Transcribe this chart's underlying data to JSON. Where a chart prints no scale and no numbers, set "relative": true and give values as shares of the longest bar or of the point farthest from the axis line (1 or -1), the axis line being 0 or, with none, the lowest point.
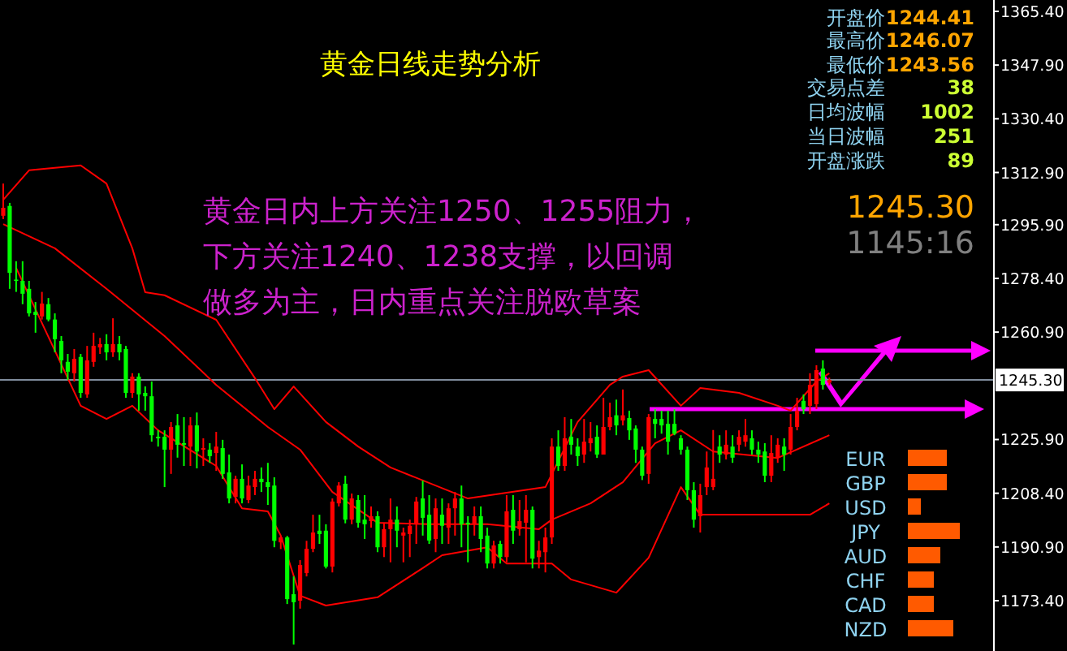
{
  "chart_data": [
    {
      "type": "candlestick",
      "title": "黄金日线走势分析",
      "categories": [
        null,
        null,
        null,
        null,
        null,
        null,
        null,
        null,
        null,
        null,
        null,
        null,
        null,
        null,
        null,
        null,
        null,
        null,
        null,
        null,
        null,
        null,
        null,
        null,
        null,
        null,
        null,
        null,
        null,
        null,
        null,
        null,
        null,
        null,
        null,
        null,
        null,
        null,
        null,
        null,
        null,
        null,
        null,
        null,
        null,
        null,
        null,
        null,
        null,
        null,
        null,
        null,
        null,
        null,
        null,
        null,
        null,
        null,
        null,
        null,
        null,
        null,
        null,
        null,
        null,
        null,
        null,
        null,
        null,
        null,
        null,
        null,
        null,
        null,
        null,
        null,
        null,
        null,
        null,
        null,
        null,
        null,
        null,
        null,
        null,
        null,
        null,
        null,
        null,
        null,
        null,
        null,
        null,
        null,
        null,
        null,
        null,
        null,
        null,
        null,
        null,
        null,
        null,
        null,
        null,
        null,
        null,
        null,
        null,
        null,
        null,
        null,
        null,
        null,
        null,
        null,
        null,
        null,
        null,
        null,
        null,
        null,
        null,
        null,
        null,
        null,
        null,
        null,
        null,
        null,
        null,
        null,
        null,
        null,
        null,
        null,
        null,
        null,
        null,
        null,
        null,
        null,
        null,
        null,
        null,
        null,
        null,
        null,
        null,
        null,
        null,
        null,
        null,
        null
      ],
      "ohlc": [
        [
          1298.8,
          1309.3,
          1297.7,
          1301.4
        ],
        [
          1302.0,
          1303.0,
          1275.0,
          1280.2
        ],
        [
          1278.0,
          1284.0,
          1274.0,
          1277.6
        ],
        [
          1277.6,
          1284.0,
          1270.0,
          1273.4
        ],
        [
          1275.0,
          1277.6,
          1266.0,
          1267.0
        ],
        [
          1267.5,
          1270.7,
          1260.7,
          1266.5
        ],
        [
          1266.0,
          1274.0,
          1265.0,
          1270.2
        ],
        [
          1270.0,
          1272.0,
          1264.4,
          1265.0
        ],
        [
          1265.0,
          1267.0,
          1254.3,
          1258.6
        ],
        [
          1258.0,
          1259.6,
          1247.5,
          1251.7
        ],
        [
          1251.2,
          1253.8,
          1245.3,
          1248.0
        ],
        [
          1247.5,
          1255.4,
          1244.8,
          1252.2
        ],
        [
          1252.8,
          1253.8,
          1239.5,
          1241.1
        ],
        [
          1240.6,
          1256.4,
          1239.5,
          1251.7
        ],
        [
          1251.2,
          1260.7,
          1249.6,
          1256.4
        ],
        [
          1255.9,
          1259.0,
          1253.8,
          1257.0
        ],
        [
          1257.0,
          1260.2,
          1251.7,
          1254.3
        ],
        [
          1254.3,
          1265.4,
          1252.8,
          1257.0
        ],
        [
          1257.0,
          1259.6,
          1251.7,
          1254.3
        ],
        [
          1255.4,
          1256.4,
          1239.5,
          1241.1
        ],
        [
          1241.1,
          1247.5,
          1239.5,
          1246.4
        ],
        [
          1246.4,
          1247.5,
          1235.3,
          1240.6
        ],
        [
          1241.1,
          1243.2,
          1235.3,
          1240.0
        ],
        [
          1240.0,
          1244.8,
          1225.2,
          1227.3
        ],
        [
          1226.8,
          1228.9,
          1223.6,
          1226.3
        ],
        [
          1226.8,
          1228.9,
          1210.4,
          1222.6
        ],
        [
          1222.6,
          1231.6,
          1214.7,
          1230.0
        ],
        [
          1230.5,
          1234.2,
          1220.0,
          1224.2
        ],
        [
          1224.7,
          1233.2,
          1217.3,
          1224.2
        ],
        [
          1223.6,
          1233.2,
          1217.3,
          1230.5
        ],
        [
          1230.5,
          1234.7,
          1216.5,
          1222.0
        ],
        [
          1222.6,
          1226.3,
          1217.3,
          1223.1
        ],
        [
          1222.6,
          1224.7,
          1218.3,
          1220.5
        ],
        [
          1221.5,
          1228.4,
          1215.7,
          1223.6
        ],
        [
          1223.1,
          1225.8,
          1213.1,
          1214.7
        ],
        [
          1215.2,
          1221.0,
          1205.1,
          1206.7
        ],
        [
          1207.2,
          1214.1,
          1205.1,
          1213.1
        ],
        [
          1213.1,
          1217.8,
          1205.1,
          1206.7
        ],
        [
          1206.2,
          1214.1,
          1205.1,
          1210.9
        ],
        [
          1210.4,
          1215.7,
          1207.8,
          1213.1
        ],
        [
          1213.1,
          1216.8,
          1208.8,
          1212.0
        ],
        [
          1212.0,
          1218.3,
          1204.6,
          1210.4
        ],
        [
          1210.9,
          1213.6,
          1190.8,
          1192.9
        ],
        [
          1192.4,
          1194.5,
          1190.2,
          1194.0
        ],
        [
          1194.0,
          1194.5,
          1172.3,
          1173.9
        ],
        [
          1175.5,
          1181.3,
          1159.1,
          1172.9
        ],
        [
          1173.4,
          1186.6,
          1170.8,
          1185.0
        ],
        [
          1182.4,
          1192.9,
          1181.3,
          1190.3
        ],
        [
          1190.3,
          1201.4,
          1189.2,
          1195.6
        ],
        [
          1196.2,
          1201.4,
          1191.9,
          1195.1
        ],
        [
          1196.2,
          1198.3,
          1183.9,
          1184.5
        ],
        [
          1184.5,
          1206.7,
          1182.6,
          1205.7
        ],
        [
          1205.1,
          1212.0,
          1204.1,
          1210.9
        ],
        [
          1211.5,
          1214.1,
          1198.6,
          1199.8
        ],
        [
          1199.8,
          1208.3,
          1198.3,
          1206.7
        ],
        [
          1206.2,
          1207.8,
          1197.2,
          1198.8
        ],
        [
          1199.8,
          1207.8,
          1193.5,
          1198.3
        ],
        [
          1199.3,
          1204.1,
          1197.2,
          1200.9
        ],
        [
          1200.9,
          1202.5,
          1189.2,
          1190.8
        ],
        [
          1190.8,
          1198.8,
          1187.6,
          1196.7
        ],
        [
          1196.7,
          1206.7,
          1185.9,
          1199.8
        ],
        [
          1199.8,
          1204.1,
          1190.8,
          1196.2
        ],
        [
          1194.6,
          1197.2,
          1185.9,
          1195.6
        ],
        [
          1195.1,
          1199.8,
          1187.6,
          1197.8
        ],
        [
          1198.3,
          1207.2,
          1191.9,
          1205.7
        ],
        [
          1206.7,
          1212.5,
          1194.6,
          1200.4
        ],
        [
          1201.4,
          1207.8,
          1191.9,
          1193.0
        ],
        [
          1193.5,
          1206.7,
          1189.2,
          1203.5
        ],
        [
          1201.4,
          1206.7,
          1191.9,
          1197.8
        ],
        [
          1197.2,
          1205.1,
          1191.9,
          1203.5
        ],
        [
          1203.5,
          1208.8,
          1194.6,
          1206.7
        ],
        [
          1206.7,
          1210.9,
          1190.8,
          1198.3
        ],
        [
          1198.8,
          1200.9,
          1185.9,
          1198.3
        ],
        [
          1198.3,
          1204.1,
          1194.6,
          1200.9
        ],
        [
          1200.9,
          1204.1,
          1189.2,
          1193.5
        ],
        [
          1194.6,
          1197.2,
          1183.9,
          1185.5
        ],
        [
          1185.5,
          1192.9,
          1183.9,
          1191.4
        ],
        [
          1191.9,
          1192.9,
          1185.5,
          1187.6
        ],
        [
          1187.6,
          1207.8,
          1185.9,
          1202.5
        ],
        [
          1203.0,
          1207.8,
          1191.9,
          1196.2
        ],
        [
          1196.7,
          1206.2,
          1194.6,
          1199.3
        ],
        [
          1198.8,
          1207.8,
          1185.9,
          1203.0
        ],
        [
          1203.0,
          1204.1,
          1183.9,
          1187.1
        ],
        [
          1187.6,
          1192.9,
          1183.9,
          1189.7
        ],
        [
          1189.2,
          1197.2,
          1182.6,
          1194.0
        ],
        [
          1194.0,
          1226.3,
          1191.9,
          1223.6
        ],
        [
          1223.6,
          1228.9,
          1215.7,
          1217.3
        ],
        [
          1217.3,
          1233.2,
          1215.7,
          1226.3
        ],
        [
          1226.8,
          1232.6,
          1221.0,
          1224.2
        ],
        [
          1223.6,
          1226.3,
          1217.3,
          1220.5
        ],
        [
          1221.0,
          1232.6,
          1218.3,
          1225.2
        ],
        [
          1224.7,
          1231.6,
          1222.0,
          1226.3
        ],
        [
          1226.8,
          1230.5,
          1219.9,
          1221.0
        ],
        [
          1221.0,
          1239.5,
          1221.0,
          1230.0
        ],
        [
          1230.0,
          1237.9,
          1228.9,
          1233.2
        ],
        [
          1233.8,
          1238.9,
          1227.3,
          1230.5
        ],
        [
          1232.1,
          1242.2,
          1230.5,
          1233.8
        ],
        [
          1232.9,
          1235.3,
          1225.8,
          1228.9
        ],
        [
          1229.5,
          1230.5,
          1218.3,
          1222.6
        ],
        [
          1222.6,
          1223.6,
          1212.7,
          1214.1
        ],
        [
          1214.7,
          1234.2,
          1211.5,
          1233.2
        ],
        [
          1232.6,
          1235.8,
          1226.3,
          1231.0
        ],
        [
          1232.6,
          1235.3,
          1227.8,
          1230.5
        ],
        [
          1231.0,
          1235.3,
          1221.0,
          1225.2
        ],
        [
          1231.0,
          1235.8,
          1227.3,
          1227.8
        ],
        [
          1226.3,
          1227.3,
          1221.0,
          1222.6
        ],
        [
          1222.6,
          1223.6,
          1206.2,
          1209.4
        ],
        [
          1209.4,
          1212.0,
          1197.2,
          1199.8
        ],
        [
          1200.9,
          1211.5,
          1195.6,
          1207.8
        ],
        [
          1210.4,
          1222.0,
          1207.8,
          1216.8
        ],
        [
          1210.4,
          1229.0,
          1209.4,
          1213.1
        ],
        [
          1223.6,
          1227.3,
          1218.3,
          1221.0
        ],
        [
          1221.0,
          1228.9,
          1219.4,
          1224.2
        ],
        [
          1223.6,
          1227.3,
          1218.3,
          1220.0
        ],
        [
          1224.2,
          1228.9,
          1222.0,
          1226.8
        ],
        [
          1225.2,
          1232.6,
          1223.6,
          1227.3
        ],
        [
          1226.3,
          1228.9,
          1221.0,
          1222.6
        ],
        [
          1222.6,
          1225.2,
          1218.3,
          1221.0
        ],
        [
          1222.0,
          1224.7,
          1212.0,
          1214.1
        ],
        [
          1214.1,
          1227.3,
          1212.0,
          1221.5
        ],
        [
          1220.0,
          1226.3,
          1218.3,
          1224.2
        ],
        [
          1223.6,
          1226.3,
          1215.7,
          1221.0
        ],
        [
          1222.6,
          1234.2,
          1221.0,
          1230.0
        ],
        [
          1230.0,
          1239.5,
          1228.9,
          1235.3
        ],
        [
          1238.5,
          1240.6,
          1234.2,
          1235.8
        ],
        [
          1236.9,
          1247.5,
          1234.2,
          1243.7
        ],
        [
          1237.4,
          1250.1,
          1235.8,
          1248.5
        ],
        [
          1249.0,
          1251.7,
          1242.2,
          1243.7
        ],
        [
          1244.41,
          1246.07,
          1243.56,
          1245.3
        ],
        null,
        null,
        null,
        null,
        null,
        null,
        null,
        null,
        null,
        null,
        null,
        null,
        null,
        null,
        null,
        null,
        null,
        null,
        null,
        null,
        null,
        null,
        null,
        null,
        null
      ],
      "series": [
        {
          "type": "line",
          "color": "#ff0000",
          "values": [
            1304.0,
            null,
            null,
            null,
            1313.6,
            null,
            null,
            null,
            null,
            null,
            null,
            null,
            1315.2,
            null,
            null,
            null,
            1309.3,
            null,
            null,
            null,
            1288.2,
            null,
            1273.9,
            null,
            null,
            1272.9,
            null,
            null,
            null,
            null,
            null,
            null,
            null,
            1264.9,
            null,
            null,
            null,
            null,
            null,
            1245.9,
            null,
            null,
            1235.8,
            null,
            null,
            1243.2,
            null,
            null,
            null,
            null,
            1231.6,
            null,
            null,
            null,
            null,
            1223.6,
            null,
            null,
            null,
            null,
            1216.8,
            null,
            null,
            null,
            null,
            null,
            null,
            null,
            null,
            null,
            null,
            null,
            1206.7,
            null,
            null,
            null,
            null,
            null,
            null,
            null,
            null,
            null,
            null,
            null,
            1210.4,
            null,
            null,
            null,
            null,
            1231.6,
            null,
            null,
            null,
            null,
            1243.7,
            null,
            1246.4,
            null,
            null,
            null,
            1248.5,
            null,
            null,
            null,
            null,
            1236.9,
            null,
            null,
            1242.7,
            null,
            null,
            null,
            null,
            null,
            1241.1,
            null,
            null,
            null,
            null,
            null,
            1236.9,
            null,
            1235.3,
            null,
            null,
            null,
            1244.8,
            null,
            1247.5,
            null,
            null,
            null,
            null,
            null,
            null,
            null,
            null,
            null,
            null,
            null,
            null,
            null,
            null,
            null,
            null,
            null,
            null,
            null,
            null,
            null,
            null,
            null,
            null,
            null
          ]
        },
        {
          "type": "line",
          "color": "#ff0000",
          "values": [
            1296.1,
            null,
            null,
            null,
            null,
            null,
            null,
            null,
            1288.2,
            null,
            null,
            null,
            null,
            null,
            null,
            null,
            1275.0,
            null,
            null,
            null,
            null,
            null,
            null,
            null,
            null,
            1259.6,
            null,
            null,
            null,
            null,
            null,
            null,
            null,
            1243.7,
            null,
            null,
            null,
            null,
            null,
            null,
            null,
            1230.0,
            null,
            null,
            null,
            null,
            1222.6,
            null,
            null,
            null,
            null,
            1208.8,
            null,
            null,
            null,
            null,
            null,
            null,
            1198.8,
            null,
            null,
            null,
            null,
            null,
            null,
            null,
            1198.3,
            null,
            null,
            null,
            null,
            null,
            null,
            null,
            null,
            1198.3,
            null,
            null,
            null,
            null,
            null,
            null,
            null,
            1196.7,
            null,
            1199.8,
            null,
            null,
            null,
            null,
            null,
            1205.1,
            null,
            null,
            null,
            null,
            1212.0,
            null,
            null,
            null,
            null,
            1224.7,
            null,
            null,
            null,
            1228.9,
            null,
            null,
            null,
            null,
            1222.0,
            null,
            null,
            null,
            null,
            null,
            null,
            null,
            null,
            null,
            1219.9,
            null,
            null,
            null,
            null,
            null,
            null,
            null,
            1227.3,
            null,
            null,
            null,
            null,
            null,
            null,
            null,
            null,
            null,
            null,
            null,
            null,
            null,
            null,
            null,
            null,
            null,
            null,
            null,
            null,
            null,
            null,
            null,
            null,
            null
          ]
        },
        {
          "type": "line",
          "color": "#ff0000",
          "values": [
            null,
            null,
            1281.8,
            null,
            null,
            null,
            null,
            null,
            null,
            null,
            1245.9,
            null,
            1236.9,
            null,
            null,
            null,
            1232.6,
            null,
            null,
            null,
            1236.9,
            null,
            null,
            null,
            1228.9,
            null,
            null,
            null,
            null,
            null,
            null,
            null,
            null,
            1217.3,
            null,
            null,
            null,
            1203.5,
            null,
            null,
            null,
            1202.5,
            null,
            1194.6,
            null,
            null,
            1175.0,
            null,
            null,
            null,
            1171.8,
            null,
            null,
            null,
            null,
            null,
            null,
            null,
            1174.5,
            null,
            null,
            null,
            null,
            null,
            null,
            1184.0,
            null,
            null,
            1188.2,
            null,
            null,
            null,
            null,
            null,
            null,
            1190.8,
            null,
            null,
            1185.5,
            null,
            null,
            null,
            null,
            null,
            null,
            1185.5,
            null,
            null,
            1180.3,
            null,
            null,
            null,
            null,
            null,
            null,
            1176.0,
            null,
            null,
            null,
            null,
            1187.4,
            null,
            null,
            null,
            null,
            1210.4,
            null,
            null,
            1201.4,
            null,
            null,
            null,
            null,
            null,
            null,
            null,
            null,
            null,
            null,
            null,
            null,
            null,
            null,
            null,
            null,
            1201.4,
            null,
            null,
            1205.1,
            null,
            null,
            null,
            null,
            null,
            null,
            null,
            null,
            null,
            null,
            null,
            null,
            null,
            null,
            null,
            null,
            null,
            null,
            null,
            null,
            null,
            null,
            null,
            null,
            null
          ]
        }
      ],
      "ylim": [
        1157.0,
        1369.1
      ],
      "yticks": [
        {
          "value": 1173.4,
          "label": "1173.40"
        },
        {
          "value": 1190.9,
          "label": "1190.90"
        },
        {
          "value": 1208.4,
          "label": "1208.40"
        },
        {
          "value": 1225.9,
          "label": "1225.90"
        },
        {
          "value": 1260.9,
          "label": "1260.90"
        },
        {
          "value": 1278.4,
          "label": "1278.40"
        },
        {
          "value": 1295.9,
          "label": "1295.90"
        },
        {
          "value": 1312.9,
          "label": "1312.90"
        },
        {
          "value": 1330.4,
          "label": "1330.40"
        },
        {
          "value": 1347.9,
          "label": "1347.90"
        },
        {
          "value": 1365.4,
          "label": "1365.40"
        }
      ],
      "ref_lines": [
        {
          "axis": "y",
          "value": 1245.3,
          "label": "1245.30",
          "color": "#7f8c9c"
        }
      ],
      "annotations": [
        "黄金日内上方关注1250、1255阻力，",
        "下方关注1240、1238支撑，以回调",
        "做多为主，日内重点关注脱欧草案",
        "开盘价",
        "最高价",
        "最低价",
        "交易点差",
        "日均波幅",
        "当日波幅",
        "开盘涨跌",
        "1244.41",
        "1246.07",
        "1243.56",
        "38",
        "1002",
        "251",
        "89",
        "1245.30",
        "1145:16"
      ]
    },
    {
      "type": "bar",
      "orientation": "horizontal",
      "relative": true,
      "color": "#ff5a00",
      "categories": [
        "EUR",
        "GBP",
        "USD",
        "JPY",
        "AUD",
        "CHF",
        "CAD",
        "NZD"
      ],
      "values": [
        0.75,
        0.75,
        0.25,
        1,
        0.625,
        0.5,
        0.5,
        0.875
      ]
    }
  ]
}
